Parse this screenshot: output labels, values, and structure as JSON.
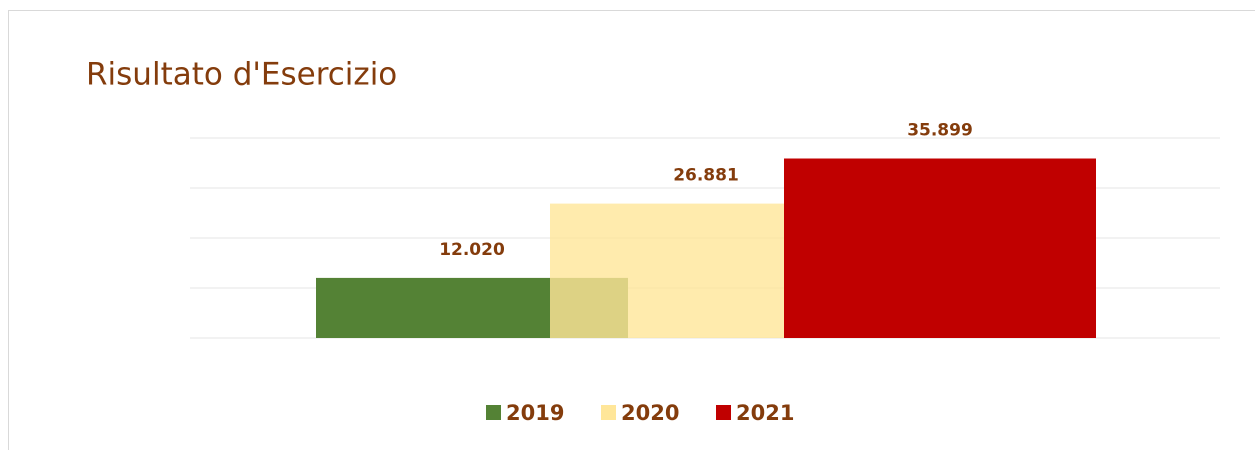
{
  "chart_data": {
    "type": "bar",
    "title": "Risultato d'Esercizio",
    "categories": [
      null
    ],
    "series": [
      {
        "name": "2019",
        "color": "#548235",
        "values": [
          12020
        ],
        "value_labels": [
          "12.020"
        ]
      },
      {
        "name": "2020",
        "color": "#ffe699",
        "values": [
          26881
        ],
        "value_labels": [
          "26.881"
        ]
      },
      {
        "name": "2021",
        "color": "#c00000",
        "values": [
          35899
        ],
        "value_labels": [
          "35.899"
        ]
      }
    ],
    "ylim": [
      0,
      40000
    ],
    "yticks": [
      0,
      10000,
      20000,
      30000,
      40000
    ],
    "grid": true,
    "legend": "bottom"
  }
}
